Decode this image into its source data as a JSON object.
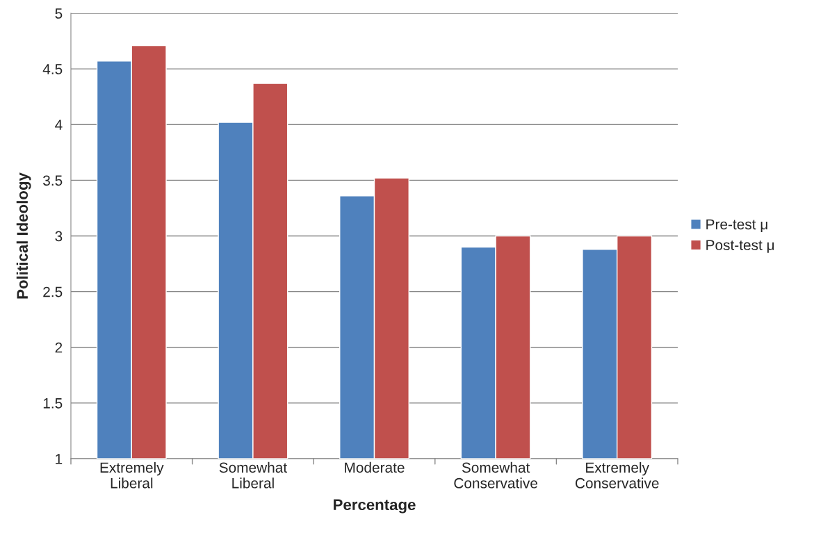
{
  "chart_data": {
    "type": "bar",
    "xlabel": "Percentage",
    "ylabel": "Political Ideology",
    "categories": [
      "Extremely\nLiberal",
      "Somewhat\nLiberal",
      "Moderate",
      "Somewhat\nConservative",
      "Extremely\nConservative"
    ],
    "series": [
      {
        "name": "Pre-test μ",
        "color": "#4f81bd",
        "values": [
          4.57,
          4.02,
          3.36,
          2.9,
          2.88
        ]
      },
      {
        "name": "Post-test μ",
        "color": "#c0504d",
        "values": [
          4.71,
          4.37,
          3.52,
          3.0,
          3.0
        ]
      }
    ],
    "ylim": [
      1,
      5
    ],
    "yticks": [
      1,
      1.5,
      2,
      2.5,
      3,
      3.5,
      4,
      4.5,
      5
    ],
    "grid": "y",
    "legend": "right"
  }
}
